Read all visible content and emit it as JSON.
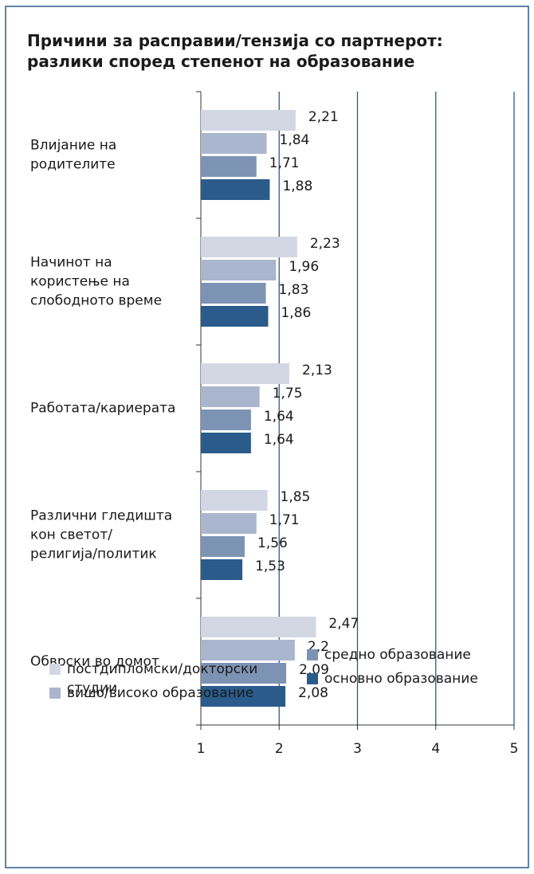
{
  "chart_data": {
    "type": "bar",
    "orientation": "horizontal",
    "title": "Причини за расправии/тензија со партнерот:\nразлики според степенот на образование",
    "categories": [
      "Влијание на\nродителите",
      "Начинот на\nкористење на\nслободното време",
      "Работата/кариерата",
      "Различни гледишта\nкон светот/\nрелигија/политик",
      "Обврски во домот"
    ],
    "series": [
      {
        "name": "постдипломски/докторски\nстудии",
        "color": "#d3d7e4",
        "values": [
          2.21,
          2.23,
          2.13,
          1.85,
          2.47
        ],
        "value_labels": [
          "2,21",
          "2,23",
          "2,13",
          "1,85",
          "2,47"
        ]
      },
      {
        "name": "вишо/високо образование",
        "color": "#a9b6cd",
        "values": [
          1.84,
          1.96,
          1.75,
          1.71,
          2.2
        ],
        "value_labels": [
          "1,84",
          "1,96",
          "1,75",
          "1,71",
          "2,2"
        ]
      },
      {
        "name": "средно образование",
        "color": "#7d93b4",
        "values": [
          1.71,
          1.83,
          1.64,
          1.56,
          2.09
        ],
        "value_labels": [
          "1,71",
          "1,83",
          "1,64",
          "1,56",
          "2,09"
        ]
      },
      {
        "name": "основно образование",
        "color": "#2a5b8b",
        "values": [
          1.88,
          1.86,
          1.64,
          1.53,
          2.08
        ],
        "value_labels": [
          "1,88",
          "1,86",
          "1,64",
          "1,53",
          "2,08"
        ]
      }
    ],
    "xlim": [
      1,
      5
    ],
    "xticks": [
      1,
      2,
      3,
      4,
      5
    ],
    "grid": true
  }
}
